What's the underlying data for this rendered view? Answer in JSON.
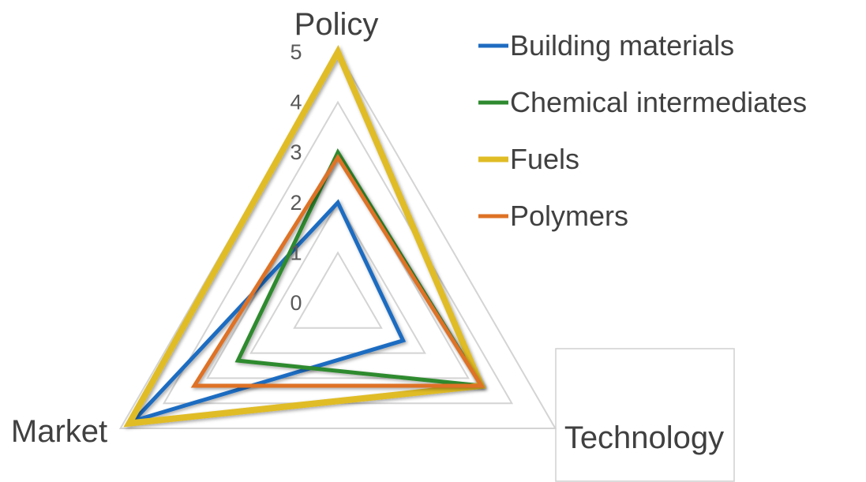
{
  "chart_data": {
    "type": "radar",
    "axes": [
      "Policy",
      "Technology",
      "Market"
    ],
    "rlim": [
      0,
      5
    ],
    "ticks": [
      "0",
      "1",
      "2",
      "3",
      "4",
      "5"
    ],
    "series": [
      {
        "name": "Building materials",
        "values": [
          2,
          1.5,
          4.7
        ],
        "color": "#1f6cc1"
      },
      {
        "name": "Chemical intermediates",
        "values": [
          3,
          3.3,
          2.3
        ],
        "color": "#2f8a2f"
      },
      {
        "name": "Fuels",
        "values": [
          5,
          3.3,
          4.8
        ],
        "color": "#e0bc25"
      },
      {
        "name": "Polymers",
        "values": [
          2.9,
          3.3,
          3.3
        ],
        "color": "#de7225"
      }
    ],
    "legend_position": "top-right",
    "grid": true
  }
}
